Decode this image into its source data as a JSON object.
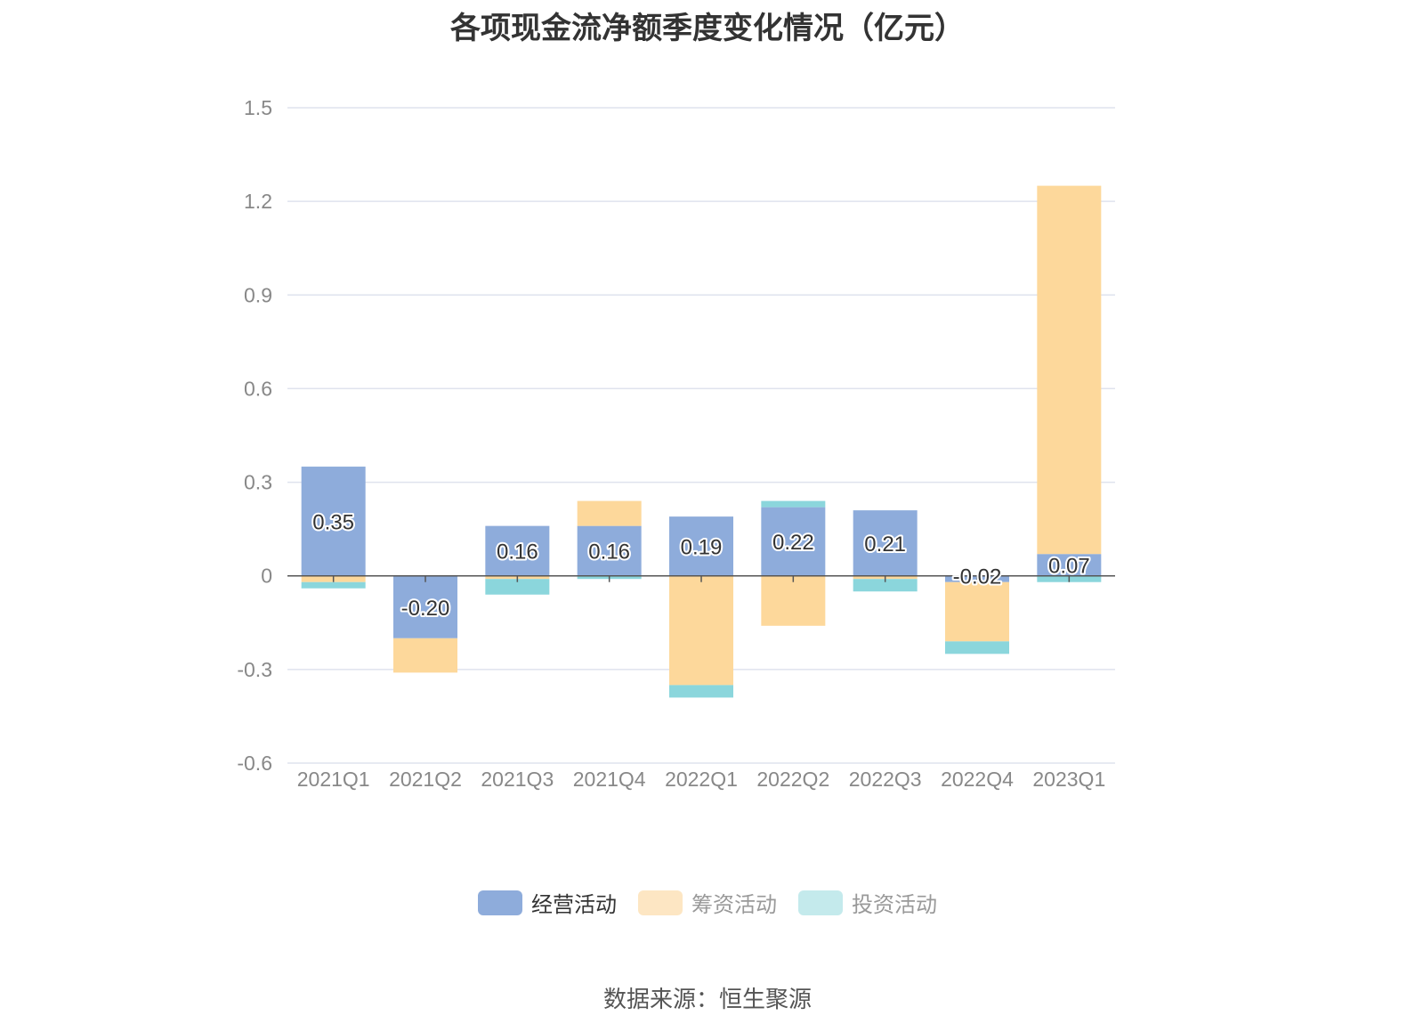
{
  "chart_data": {
    "type": "bar",
    "stacked": true,
    "title": "各项现金流净额季度变化情况（亿元）",
    "categories": [
      "2021Q1",
      "2021Q2",
      "2021Q3",
      "2021Q4",
      "2022Q1",
      "2022Q2",
      "2022Q3",
      "2022Q4",
      "2023Q1"
    ],
    "series": [
      {
        "name": "经营活动",
        "color": "#8eacdb",
        "values": [
          0.35,
          -0.2,
          0.16,
          0.16,
          0.19,
          0.22,
          0.21,
          -0.02,
          0.07
        ]
      },
      {
        "name": "筹资活动",
        "color": "#fdd89b",
        "values": [
          -0.02,
          -0.11,
          -0.01,
          0.08,
          -0.35,
          -0.16,
          -0.01,
          -0.19,
          1.18
        ]
      },
      {
        "name": "投资活动",
        "color": "#8bd6dc",
        "values": [
          -0.02,
          0.0,
          -0.05,
          -0.01,
          -0.04,
          0.02,
          -0.04,
          -0.04,
          -0.02
        ]
      }
    ],
    "data_labels": [
      "0.35",
      "-0.20",
      "0.16",
      "0.16",
      "0.19",
      "0.22",
      "0.21",
      "-0.02",
      "0.07"
    ],
    "ylim": [
      -0.6,
      1.5
    ],
    "yticks": [
      "1.5",
      "1.2",
      "0.9",
      "0.6",
      "0.3",
      "0",
      "-0.3",
      "-0.6"
    ],
    "grid": true,
    "legend_position": "bottom",
    "legend": [
      {
        "label": "经营活动",
        "swatch": "#8eacdb",
        "text_color": "#333333"
      },
      {
        "label": "筹资活动",
        "swatch": "#fde6c3",
        "text_color": "#999999"
      },
      {
        "label": "投资活动",
        "swatch": "#c4eaec",
        "text_color": "#999999"
      }
    ]
  },
  "source": "数据来源：恒生聚源"
}
